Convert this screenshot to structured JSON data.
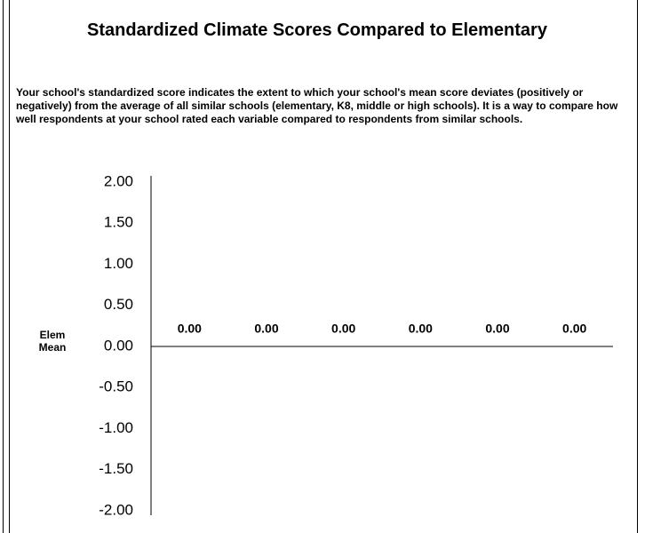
{
  "chart_data": {
    "type": "bar",
    "title": "Standardized Climate Scores Compared to Elementary",
    "subtitle": "Your school's standardized score indicates the extent to which your school's mean score deviates (positively or negatively) from the average of all similar schools (elementary, K8, middle or high schools). It is a way to compare how well respondents at your school rated each variable compared to respondents from similar schools.",
    "annotation": "Elem Mean",
    "categories": [
      null,
      null,
      null,
      null,
      null,
      null
    ],
    "values": [
      0,
      0,
      0,
      0,
      0,
      0
    ],
    "value_labels": [
      "0.00",
      "0.00",
      "0.00",
      "0.00",
      "0.00",
      "0.00"
    ],
    "color": "#4472c4",
    "ylim": [
      -2,
      2
    ],
    "yticks": [
      {
        "value": 2,
        "label": "2.00"
      },
      {
        "value": 1.5,
        "label": "1.50"
      },
      {
        "value": 1,
        "label": "1.00"
      },
      {
        "value": 0.5,
        "label": "0.50"
      },
      {
        "value": 0,
        "label": "0.00"
      },
      {
        "value": -0.5,
        "label": "-0.50"
      },
      {
        "value": -1,
        "label": "-1.00"
      },
      {
        "value": -1.5,
        "label": "-1.50"
      },
      {
        "value": -2,
        "label": "-2.00"
      }
    ],
    "grid": false
  }
}
